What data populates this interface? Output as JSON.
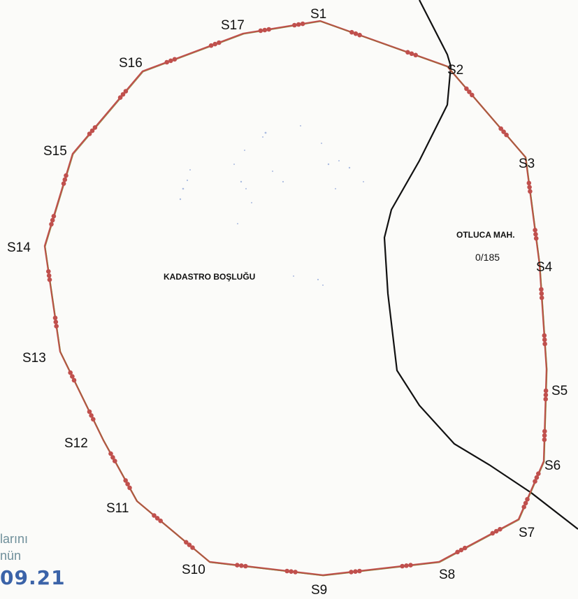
{
  "map": {
    "boundary_color": "#c0504d",
    "line_color": "#111111",
    "stamp_color": "#3b63a8",
    "vertices": [
      {
        "label": "S1"
      },
      {
        "label": "S2"
      },
      {
        "label": "S3"
      },
      {
        "label": "S4"
      },
      {
        "label": "S5"
      },
      {
        "label": "S6"
      },
      {
        "label": "S7"
      },
      {
        "label": "S8"
      },
      {
        "label": "S9"
      },
      {
        "label": "S10"
      },
      {
        "label": "S11"
      },
      {
        "label": "S12"
      },
      {
        "label": "S13"
      },
      {
        "label": "S14"
      },
      {
        "label": "S15"
      },
      {
        "label": "S16"
      },
      {
        "label": "S17"
      }
    ],
    "area_label": "KADASTRO BOŞLUĞU",
    "neighbour": {
      "name": "OTLUCA MAH.",
      "parcel": "0/185"
    }
  },
  "stamp": {
    "line1": "larını",
    "line2": "nün",
    "line3": "09.21"
  }
}
